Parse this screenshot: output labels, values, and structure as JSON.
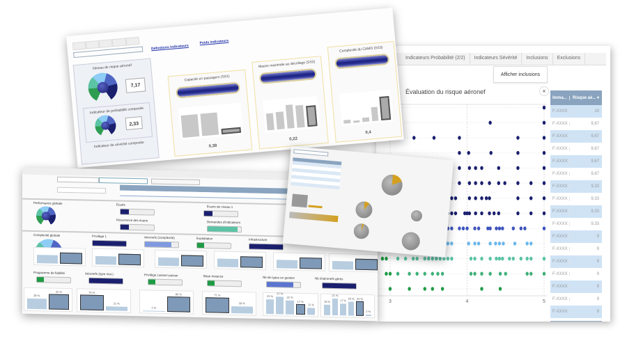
{
  "back_window": {
    "tabs": [
      "Indicateurs Probabilité (2/2)",
      "Indicateurs Sévérité",
      "Inclusions",
      "Exclusions"
    ],
    "show_inclusions_button": "Afficher inclusions",
    "chart_title": "Évaluation du risque aéronef",
    "collapse_label": "«",
    "table": {
      "headers": [
        "Imma...",
        "Risque aé... ▾"
      ],
      "rows": [
        [
          "F-XXXX",
          "10"
        ],
        [
          "F-XXXX",
          "9,67"
        ],
        [
          "F-XXXX",
          "9,67"
        ],
        [
          "F-XXXX",
          "9,67"
        ],
        [
          "F-XXXX",
          "9,67"
        ],
        [
          "F-XXXX",
          "9,67"
        ],
        [
          "F-XXXX",
          "9,33"
        ],
        [
          "F-XXXX",
          "9,33"
        ],
        [
          "F-XXXX",
          "9,33"
        ],
        [
          "F-XXXX",
          "9,33"
        ],
        [
          "F-XXXX",
          "9"
        ],
        [
          "F-XXXX",
          "9"
        ],
        [
          "F-XXXX",
          "9"
        ],
        [
          "F-XXXX",
          "9"
        ],
        [
          "F-XXXX",
          "9"
        ],
        [
          "F-XXXX",
          "9"
        ],
        [
          "F-XXXX",
          "9"
        ]
      ]
    }
  },
  "chart_data": {
    "type": "scatter",
    "x_ticks": [
      "3",
      "4",
      "5"
    ],
    "xlim": [
      2.8,
      5
    ],
    "grid": true,
    "row_colors": [
      "#1f9b45",
      "#3fb07a",
      "#5cc3a5",
      "#6cb8ec",
      "#3f55bd",
      "#1a1f6e",
      "#1a1f6e",
      "#1a1f6e",
      "#1a1f6e",
      "#1a1f6e",
      "#1a1f6e",
      "#1a1f6e",
      "#1a1f6e"
    ],
    "rows": [
      [
        3.0,
        3.25,
        3.45,
        3.55,
        3.68,
        4.19,
        4.43
      ],
      [
        2.95,
        3.0,
        3.1,
        3.25,
        3.35,
        3.45,
        3.55,
        3.62,
        3.68,
        4.05,
        4.1,
        4.19,
        4.3,
        4.43,
        4.5,
        4.78,
        4.83,
        5
      ],
      [
        2.9,
        2.95,
        3.1,
        3.2,
        3.3,
        3.35,
        3.45,
        3.5,
        3.55,
        3.6,
        3.65,
        3.7,
        3.75,
        3.8,
        4.05,
        4.1,
        4.19,
        4.3,
        4.38,
        4.42,
        4.46,
        4.55,
        4.6,
        4.7,
        4.78,
        4.83,
        5
      ],
      [
        3.75,
        3.8,
        4.02,
        4.1,
        4.15,
        4.3,
        4.37,
        4.42,
        4.47,
        4.62,
        4.78,
        4.83
      ],
      [
        3.75,
        3.8,
        3.9,
        3.95,
        4.0,
        4.1,
        4.15,
        4.27,
        4.3,
        4.38,
        4.42,
        4.46,
        4.6,
        4.7,
        4.75,
        5
      ],
      [
        3.75,
        3.8,
        3.85,
        3.97,
        4.0,
        4.03,
        4.11,
        4.19,
        4.29,
        4.35,
        4.41,
        4.66,
        4.83,
        5
      ],
      [
        3.8,
        3.85,
        4.03,
        4.11,
        4.19,
        4.25,
        4.29,
        4.66,
        4.83,
        5
      ],
      [
        3.9,
        4.03,
        4.11,
        4.19,
        4.29,
        4.41,
        4.49,
        4.66,
        4.83,
        5
      ],
      [
        3.9,
        4.03,
        4.11,
        4.19,
        4.41,
        4.66,
        5
      ],
      [
        3.9,
        4.02,
        4.31,
        4.66,
        5
      ],
      [
        3.12,
        3.31,
        3.57,
        3.9,
        4.66,
        5
      ],
      [
        4.3,
        5
      ],
      [
        5
      ]
    ]
  },
  "top_window": {
    "links": [
      "Définitions indicateurs",
      "Poids indicateurs"
    ],
    "gauges": [
      {
        "title": "Niveau de risque aéronef",
        "value": "7,17"
      },
      {
        "title": "Indicateur de probabilité composite",
        "value": "2,33"
      },
      {
        "title": "Indicateur de sévérité composite"
      }
    ],
    "cards": [
      {
        "title": "Capacité en passagers (SS1)",
        "poids": "0,38",
        "bars": [
          0.8,
          0.8,
          0.2
        ],
        "selected": 2
      },
      {
        "title": "Masse maximale au décollage (SS2)",
        "poids": "0,22",
        "bars": [
          0.6,
          0.62,
          0.85,
          0.8,
          0.75
        ],
        "selected": 4
      },
      {
        "title": "Complexité du CAMO (SS3)",
        "poids": "0,4",
        "bars": [
          0.12,
          0.08,
          0.15,
          0.5,
          0.85
        ],
        "selected": 4
      }
    ]
  },
  "bottom_window": {
    "labels": [
      "Performance globale",
      "Écarts",
      "Écarts de niveau 1",
      "Récurrence des écarts",
      "Demandes d'indicateurs",
      "Complexité globale",
      "Privilège 1",
      "Aéronefs (complexité)",
      "Exploitation",
      "Infrastructure",
      "Programme de fiabilité",
      "Aéronefs (type mot.)",
      "Privilège Laissez-passer",
      "Base Instance",
      "Nb de types en gestion",
      "Nb d'aéronefs gérés"
    ],
    "percent_groups": [
      {
        "values": [
          "28 %",
          "32 %"
        ],
        "heights": [
          0.55,
          0.8
        ],
        "selected": 1
      },
      {
        "values": [
          "70 %",
          "21 %"
        ],
        "heights": [
          0.8,
          0.22
        ],
        "selected": 0
      },
      {
        "values": [
          "1 %",
          "80 %"
        ],
        "heights": [
          0.03,
          0.8
        ],
        "selected": 1
      },
      {
        "values": [
          "71 %",
          "29 %"
        ],
        "heights": [
          0.8,
          0.35
        ],
        "selected": 0
      },
      {
        "values": [
          "23 %",
          "27 %",
          "22 %",
          "17 %",
          "11 %"
        ],
        "heights": [
          0.75,
          0.88,
          0.72,
          0.55,
          0.36
        ],
        "selected": 3
      },
      {
        "values": [
          "16 %",
          "21 %",
          "17 %",
          "20 %",
          "22 %",
          "2 %"
        ],
        "heights": [
          0.55,
          0.85,
          0.6,
          0.7,
          0.75,
          0.07
        ],
        "selected": 4
      }
    ]
  },
  "colors": {
    "navy": "#1a1f6e",
    "header_blue": "#8aa4bf",
    "row_highlight": "#cfe3f5",
    "pie_accent": "#d4a020"
  }
}
